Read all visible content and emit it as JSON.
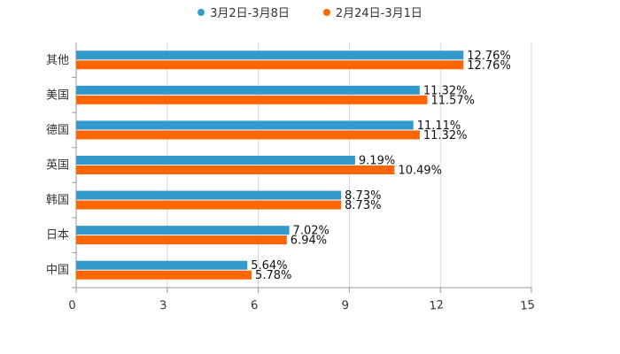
{
  "chart_data": {
    "type": "bar",
    "orientation": "horizontal",
    "categories": [
      "其他",
      "美国",
      "德国",
      "英国",
      "韩国",
      "日本",
      "中国"
    ],
    "series": [
      {
        "name": "3月2日-3月8日",
        "color": "#3399cc",
        "values": [
          12.76,
          11.32,
          11.11,
          9.19,
          8.73,
          7.02,
          5.64
        ],
        "labels": [
          "12.76%",
          "11.32%",
          "11.11%",
          "9.19%",
          "8.73%",
          "7.02%",
          "5.64%"
        ]
      },
      {
        "name": "2月24日-3月1日",
        "color": "#ff6600",
        "values": [
          12.76,
          11.57,
          11.32,
          10.49,
          8.73,
          6.94,
          5.78
        ],
        "labels": [
          "12.76%",
          "11.57%",
          "11.32%",
          "10.49%",
          "8.73%",
          "6.94%",
          "5.78%"
        ]
      }
    ],
    "xlim": [
      0,
      15
    ],
    "xticks": [
      0,
      3,
      6,
      9,
      12,
      15
    ],
    "grid": true,
    "legend_position": "top-center"
  }
}
